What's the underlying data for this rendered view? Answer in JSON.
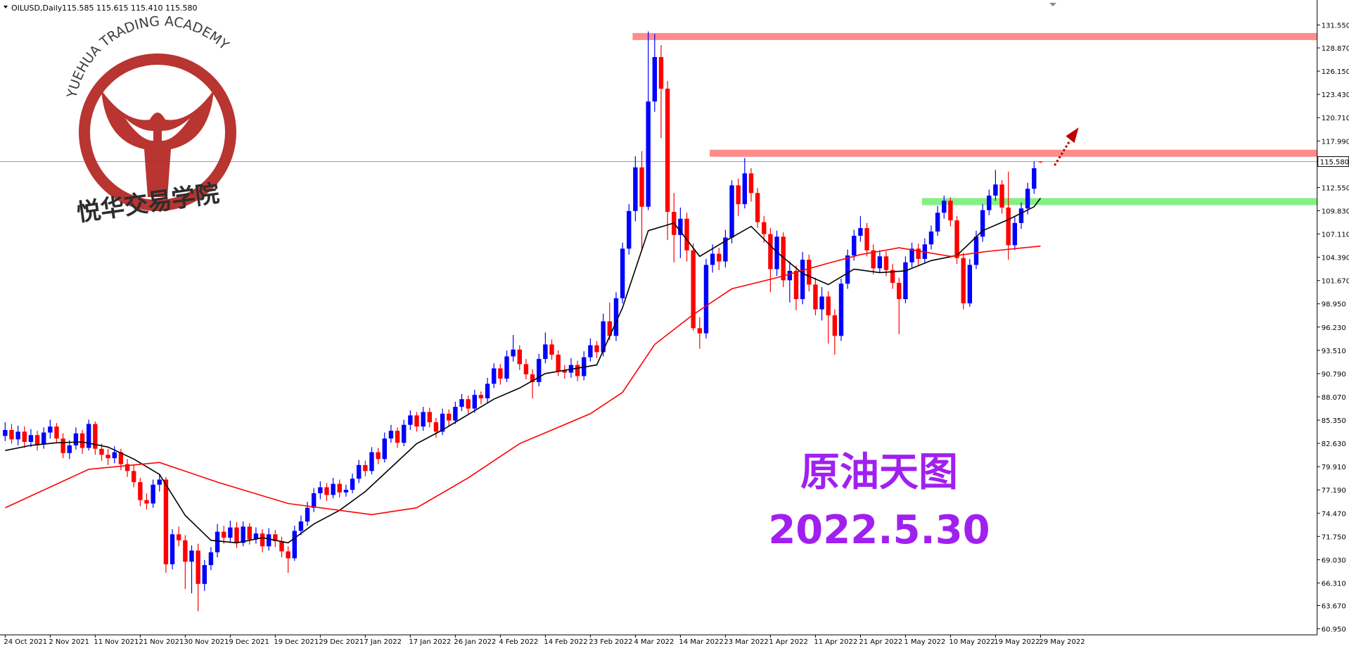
{
  "chart_data": {
    "type": "candlestick",
    "header": [
      "OILUSD,Daily",
      "115.585 115.615 115.410 115.580"
    ],
    "watermark": "YUEHUA TRADING ACADEMY",
    "watermark_cn": "悦华交易学院",
    "annotations": [
      "原油天图",
      "2022.5.30"
    ],
    "up_color": "#0000ff",
    "down_color": "#ff0000",
    "ylim": [
      60.25,
      134.47
    ],
    "yticks": [
      {
        "value": 131.55,
        "label": "131.550"
      },
      {
        "value": 128.87,
        "label": "128.870"
      },
      {
        "value": 126.15,
        "label": "126.150"
      },
      {
        "value": 123.43,
        "label": "123.430"
      },
      {
        "value": 120.71,
        "label": "120.710"
      },
      {
        "value": 117.99,
        "label": "117.990"
      },
      {
        "value": 112.55,
        "label": "112.550"
      },
      {
        "value": 109.83,
        "label": "109.830"
      },
      {
        "value": 107.11,
        "label": "107.110"
      },
      {
        "value": 104.39,
        "label": "104.390"
      },
      {
        "value": 101.67,
        "label": "101.670"
      },
      {
        "value": 98.95,
        "label": "98.950"
      },
      {
        "value": 96.23,
        "label": "96.230"
      },
      {
        "value": 93.51,
        "label": "93.510"
      },
      {
        "value": 90.79,
        "label": "90.790"
      },
      {
        "value": 88.07,
        "label": "88.070"
      },
      {
        "value": 85.35,
        "label": "85.350"
      },
      {
        "value": 82.63,
        "label": "82.630"
      },
      {
        "value": 79.91,
        "label": "79.910"
      },
      {
        "value": 77.19,
        "label": "77.190"
      },
      {
        "value": 74.47,
        "label": "74.470"
      },
      {
        "value": 71.75,
        "label": "71.750"
      },
      {
        "value": 69.03,
        "label": "69.030"
      },
      {
        "value": 66.31,
        "label": "66.310"
      },
      {
        "value": 63.67,
        "label": "63.670"
      },
      {
        "value": 60.95,
        "label": "60.950"
      }
    ],
    "last_price": {
      "value": 115.58,
      "label": "115.580"
    },
    "categories": [
      "24 Oct 2021",
      null,
      null,
      null,
      null,
      null,
      null,
      "2 Nov 2021",
      null,
      null,
      null,
      null,
      null,
      null,
      "11 Nov 2021",
      null,
      null,
      null,
      null,
      null,
      null,
      "21 Nov 2021",
      null,
      null,
      null,
      null,
      null,
      null,
      "30 Nov 2021",
      null,
      null,
      null,
      null,
      null,
      null,
      "9 Dec 2021",
      null,
      null,
      null,
      null,
      null,
      null,
      "19 Dec 2021",
      null,
      null,
      null,
      null,
      null,
      null,
      "29 Dec 2021",
      null,
      null,
      null,
      null,
      null,
      null,
      "7 Jan 2022",
      null,
      null,
      null,
      null,
      null,
      null,
      "17 Jan 2022",
      null,
      null,
      null,
      null,
      null,
      null,
      "26 Jan 2022",
      null,
      null,
      null,
      null,
      null,
      null,
      "4 Feb 2022",
      null,
      null,
      null,
      null,
      null,
      null,
      "14 Feb 2022",
      null,
      null,
      null,
      null,
      null,
      null,
      "23 Feb 2022",
      null,
      null,
      null,
      null,
      null,
      null,
      "4 Mar 2022",
      null,
      null,
      null,
      null,
      null,
      null,
      "14 Mar 2022",
      null,
      null,
      null,
      null,
      null,
      null,
      "23 Mar 2022",
      null,
      null,
      null,
      null,
      null,
      null,
      "1 Apr 2022",
      null,
      null,
      null,
      null,
      null,
      null,
      "11 Apr 2022",
      null,
      null,
      null,
      null,
      null,
      null,
      "21 Apr 2022",
      null,
      null,
      null,
      null,
      null,
      null,
      "1 May 2022",
      null,
      null,
      null,
      null,
      null,
      null,
      "10 May 2022",
      null,
      null,
      null,
      null,
      null,
      null,
      "19 May 2022",
      null,
      null,
      null,
      null,
      null,
      null,
      "29 May 2022"
    ],
    "candles": [
      [
        83.5,
        85.1,
        82.9,
        84.2
      ],
      [
        84.2,
        84.9,
        82.6,
        83.1
      ],
      [
        83.1,
        84.7,
        82.4,
        84.0
      ],
      [
        84.0,
        84.6,
        82.1,
        82.8
      ],
      [
        82.8,
        84.3,
        82.2,
        83.6
      ],
      [
        83.6,
        84.1,
        81.8,
        82.5
      ],
      [
        82.5,
        84.5,
        82.0,
        83.9
      ],
      [
        83.9,
        85.4,
        83.2,
        84.6
      ],
      [
        84.6,
        85.0,
        82.7,
        83.2
      ],
      [
        83.2,
        83.8,
        80.9,
        81.5
      ],
      [
        81.5,
        83.0,
        80.8,
        82.4
      ],
      [
        82.4,
        84.5,
        81.9,
        83.8
      ],
      [
        83.8,
        84.2,
        81.4,
        82.1
      ],
      [
        82.1,
        85.4,
        81.8,
        84.9
      ],
      [
        84.9,
        85.2,
        81.3,
        82.0
      ],
      [
        82.0,
        82.6,
        80.6,
        81.3
      ],
      [
        81.3,
        82.0,
        80.1,
        80.9
      ],
      [
        80.9,
        82.3,
        80.3,
        81.6
      ],
      [
        81.6,
        82.0,
        79.5,
        80.2
      ],
      [
        80.2,
        80.8,
        78.7,
        79.4
      ],
      [
        79.4,
        80.1,
        77.5,
        78.1
      ],
      [
        78.1,
        78.6,
        75.3,
        76.0
      ],
      [
        76.0,
        76.8,
        74.9,
        75.6
      ],
      [
        75.6,
        78.4,
        75.1,
        77.8
      ],
      [
        77.8,
        79.1,
        77.0,
        78.4
      ],
      [
        78.4,
        78.7,
        67.5,
        68.5
      ],
      [
        68.5,
        72.6,
        67.9,
        72.0
      ],
      [
        72.0,
        72.9,
        70.6,
        71.3
      ],
      [
        71.3,
        71.9,
        65.6,
        68.8
      ],
      [
        68.8,
        70.7,
        65.1,
        70.1
      ],
      [
        70.1,
        70.9,
        63.0,
        66.2
      ],
      [
        66.2,
        69.0,
        65.4,
        68.4
      ],
      [
        68.4,
        70.5,
        67.8,
        69.9
      ],
      [
        69.9,
        73.2,
        69.3,
        72.3
      ],
      [
        72.3,
        73.0,
        70.9,
        71.6
      ],
      [
        71.6,
        73.6,
        71.0,
        72.8
      ],
      [
        72.8,
        73.4,
        70.4,
        71.0
      ],
      [
        71.0,
        73.5,
        70.6,
        72.9
      ],
      [
        72.9,
        73.3,
        70.8,
        71.4
      ],
      [
        71.4,
        72.8,
        70.9,
        72.1
      ],
      [
        72.1,
        72.6,
        69.9,
        70.6
      ],
      [
        70.6,
        72.7,
        70.1,
        72.0
      ],
      [
        72.0,
        72.5,
        70.5,
        71.2
      ],
      [
        71.2,
        71.7,
        69.3,
        70.0
      ],
      [
        70.0,
        70.6,
        67.5,
        69.2
      ],
      [
        69.2,
        73.0,
        68.9,
        72.4
      ],
      [
        72.4,
        74.2,
        71.9,
        73.5
      ],
      [
        73.5,
        75.8,
        73.0,
        75.1
      ],
      [
        75.1,
        77.4,
        74.6,
        76.8
      ],
      [
        76.8,
        78.2,
        76.1,
        77.5
      ],
      [
        77.5,
        78.0,
        75.9,
        76.6
      ],
      [
        76.6,
        78.6,
        76.2,
        77.9
      ],
      [
        77.9,
        78.4,
        76.3,
        76.9
      ],
      [
        76.9,
        77.8,
        76.4,
        77.2
      ],
      [
        77.2,
        79.1,
        76.8,
        78.5
      ],
      [
        78.5,
        80.7,
        78.0,
        80.1
      ],
      [
        80.1,
        80.6,
        78.8,
        79.4
      ],
      [
        79.4,
        82.2,
        79.0,
        81.6
      ],
      [
        81.6,
        82.1,
        80.2,
        80.8
      ],
      [
        80.8,
        83.9,
        80.4,
        83.2
      ],
      [
        83.2,
        84.8,
        82.7,
        84.1
      ],
      [
        84.1,
        84.5,
        82.1,
        82.7
      ],
      [
        82.7,
        85.4,
        82.3,
        84.8
      ],
      [
        84.8,
        86.5,
        84.2,
        85.9
      ],
      [
        85.9,
        86.3,
        84.0,
        84.6
      ],
      [
        84.6,
        86.9,
        84.1,
        86.3
      ],
      [
        86.3,
        86.8,
        84.5,
        85.1
      ],
      [
        85.1,
        85.6,
        83.3,
        84.0
      ],
      [
        84.0,
        86.7,
        83.6,
        86.1
      ],
      [
        86.1,
        86.6,
        84.7,
        85.3
      ],
      [
        85.3,
        87.5,
        84.9,
        86.9
      ],
      [
        86.9,
        88.4,
        86.4,
        87.8
      ],
      [
        87.8,
        88.2,
        86.1,
        86.7
      ],
      [
        86.7,
        88.9,
        86.2,
        88.3
      ],
      [
        88.3,
        88.7,
        87.2,
        87.9
      ],
      [
        87.9,
        90.3,
        87.4,
        89.6
      ],
      [
        89.6,
        92.0,
        89.1,
        91.4
      ],
      [
        91.4,
        91.9,
        89.5,
        90.2
      ],
      [
        90.2,
        93.5,
        89.8,
        92.8
      ],
      [
        92.8,
        95.3,
        92.2,
        93.6
      ],
      [
        93.6,
        94.1,
        91.2,
        91.9
      ],
      [
        91.9,
        92.5,
        90.1,
        90.7
      ],
      [
        90.7,
        91.3,
        87.9,
        89.8
      ],
      [
        89.8,
        93.1,
        89.3,
        92.5
      ],
      [
        92.5,
        95.6,
        92.0,
        94.2
      ],
      [
        94.2,
        94.8,
        92.4,
        93.0
      ],
      [
        93.0,
        93.5,
        90.5,
        91.1
      ],
      [
        91.1,
        91.8,
        90.2,
        90.9
      ],
      [
        90.9,
        92.6,
        90.3,
        91.8
      ],
      [
        91.8,
        92.3,
        89.9,
        90.5
      ],
      [
        90.5,
        93.4,
        90.0,
        92.7
      ],
      [
        92.7,
        94.9,
        92.2,
        94.1
      ],
      [
        94.1,
        94.6,
        92.6,
        93.3
      ],
      [
        93.3,
        97.8,
        92.8,
        96.9
      ],
      [
        96.9,
        99.1,
        94.7,
        95.2
      ],
      [
        95.2,
        100.3,
        94.6,
        99.6
      ],
      [
        99.6,
        106.1,
        99.0,
        105.4
      ],
      [
        105.4,
        110.6,
        104.7,
        109.8
      ],
      [
        109.8,
        116.2,
        108.6,
        114.9
      ],
      [
        114.9,
        116.8,
        105.3,
        110.3
      ],
      [
        110.3,
        130.8,
        109.9,
        122.6
      ],
      [
        122.6,
        130.5,
        121.4,
        127.8
      ],
      [
        127.8,
        129.2,
        118.3,
        124.1
      ],
      [
        124.1,
        125.0,
        106.4,
        109.7
      ],
      [
        109.7,
        111.9,
        103.8,
        107.0
      ],
      [
        107.0,
        110.2,
        104.3,
        108.9
      ],
      [
        108.9,
        109.6,
        103.9,
        105.2
      ],
      [
        105.2,
        106.0,
        95.8,
        96.1
      ],
      [
        96.1,
        97.4,
        93.7,
        95.5
      ],
      [
        95.5,
        104.2,
        94.9,
        103.5
      ],
      [
        103.5,
        105.9,
        102.6,
        104.8
      ],
      [
        104.8,
        105.5,
        102.9,
        103.9
      ],
      [
        103.9,
        107.6,
        103.2,
        106.7
      ],
      [
        106.7,
        113.4,
        106.0,
        112.8
      ],
      [
        112.8,
        113.6,
        109.2,
        110.6
      ],
      [
        110.6,
        116.0,
        110.1,
        114.2
      ],
      [
        114.2,
        114.8,
        110.9,
        111.9
      ],
      [
        111.9,
        112.5,
        107.8,
        108.5
      ],
      [
        108.5,
        109.2,
        106.1,
        107.1
      ],
      [
        107.1,
        107.8,
        100.3,
        103.0
      ],
      [
        103.0,
        107.5,
        102.2,
        106.8
      ],
      [
        106.8,
        107.3,
        100.9,
        101.7
      ],
      [
        101.7,
        103.9,
        99.1,
        102.8
      ],
      [
        102.8,
        103.4,
        98.2,
        99.5
      ],
      [
        99.5,
        105.0,
        98.9,
        104.1
      ],
      [
        104.1,
        104.7,
        100.4,
        101.2
      ],
      [
        101.2,
        102.0,
        97.6,
        98.3
      ],
      [
        98.3,
        100.9,
        97.0,
        99.8
      ],
      [
        99.8,
        100.4,
        94.3,
        97.6
      ],
      [
        97.6,
        98.3,
        93.0,
        95.2
      ],
      [
        95.2,
        101.9,
        94.6,
        101.3
      ],
      [
        101.3,
        105.3,
        100.7,
        104.6
      ],
      [
        104.6,
        107.6,
        104.0,
        106.9
      ],
      [
        106.9,
        109.2,
        106.2,
        107.8
      ],
      [
        107.8,
        108.4,
        104.5,
        105.2
      ],
      [
        105.2,
        105.9,
        102.4,
        103.1
      ],
      [
        103.1,
        105.2,
        102.6,
        104.5
      ],
      [
        104.5,
        105.1,
        102.2,
        102.9
      ],
      [
        102.9,
        103.6,
        100.7,
        101.4
      ],
      [
        101.4,
        102.0,
        95.4,
        99.5
      ],
      [
        99.5,
        104.5,
        99.0,
        103.8
      ],
      [
        103.8,
        106.1,
        103.2,
        105.4
      ],
      [
        105.4,
        106.0,
        103.5,
        104.2
      ],
      [
        104.2,
        106.6,
        103.7,
        105.9
      ],
      [
        105.9,
        108.1,
        105.3,
        107.4
      ],
      [
        107.4,
        110.4,
        106.9,
        109.6
      ],
      [
        109.6,
        111.6,
        108.9,
        111.0
      ],
      [
        111.0,
        111.4,
        108.0,
        108.7
      ],
      [
        108.7,
        109.2,
        103.6,
        104.3
      ],
      [
        104.3,
        104.9,
        98.3,
        99.0
      ],
      [
        99.0,
        104.2,
        98.6,
        103.5
      ],
      [
        103.5,
        107.5,
        103.0,
        106.8
      ],
      [
        106.8,
        110.6,
        106.2,
        109.9
      ],
      [
        109.9,
        112.3,
        109.3,
        111.6
      ],
      [
        111.6,
        114.6,
        111.0,
        112.9
      ],
      [
        112.9,
        113.4,
        109.5,
        110.2
      ],
      [
        110.2,
        114.4,
        104.1,
        105.8
      ],
      [
        105.8,
        109.1,
        105.2,
        108.4
      ],
      [
        108.4,
        110.8,
        107.7,
        110.1
      ],
      [
        110.1,
        113.1,
        109.4,
        112.4
      ],
      [
        112.4,
        115.6,
        111.8,
        114.8
      ],
      [
        115.585,
        115.615,
        115.41,
        115.58
      ]
    ],
    "lines": [
      {
        "color": "#000000",
        "x": [
          0,
          4,
          8,
          12,
          16,
          20,
          24,
          28,
          32,
          36,
          40,
          44,
          48,
          52,
          56,
          60,
          64,
          68,
          72,
          76,
          80,
          84,
          88,
          92,
          96,
          100,
          104,
          108,
          112,
          116,
          120,
          124,
          128,
          132,
          136,
          140,
          144,
          148,
          152,
          156,
          160,
          161
        ],
        "values": [
          81.8,
          82.4,
          82.7,
          82.8,
          82.2,
          80.8,
          79.0,
          74.2,
          71.3,
          71.0,
          71.6,
          71.0,
          73.2,
          74.8,
          77.0,
          79.8,
          82.6,
          84.2,
          86.0,
          87.8,
          89.1,
          90.8,
          91.3,
          91.8,
          98.5,
          107.5,
          108.4,
          104.5,
          106.3,
          108.0,
          105.0,
          102.5,
          101.2,
          103.0,
          102.6,
          102.8,
          104.0,
          104.6,
          107.5,
          108.8,
          110.3,
          111.3
        ]
      },
      {
        "color": "#ff0000",
        "x": [
          0,
          13,
          24,
          33,
          44,
          57,
          64,
          72,
          80,
          91,
          96,
          101,
          107,
          113,
          120,
          128,
          133,
          139,
          147,
          153,
          161
        ],
        "values": [
          75.1,
          79.6,
          80.4,
          78.1,
          75.6,
          74.3,
          75.1,
          78.6,
          82.6,
          86.1,
          88.6,
          94.2,
          97.7,
          100.7,
          102.0,
          103.7,
          104.7,
          105.5,
          104.5,
          105.1,
          105.7
        ]
      }
    ],
    "levels": [
      {
        "value": 130.2,
        "start": 98,
        "color": "#ff7f7f"
      },
      {
        "value": 116.55,
        "start": 110,
        "color": "#ff7f7f"
      },
      {
        "value": 110.9,
        "start": 143,
        "color": "#77ee77"
      }
    ]
  }
}
